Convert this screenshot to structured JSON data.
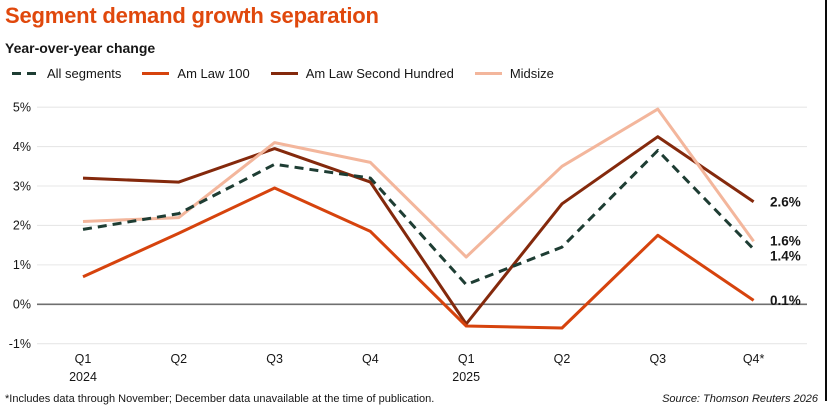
{
  "title": "Segment demand growth separation",
  "subtitle": "Year-over-year change",
  "legend": {
    "items": [
      {
        "label": "All segments",
        "color": "#1e3d33",
        "style": "dashed"
      },
      {
        "label": "Am Law 100",
        "color": "#d6430d",
        "style": "solid"
      },
      {
        "label": "Am Law Second Hundred",
        "color": "#84290c",
        "style": "solid"
      },
      {
        "label": "Midsize",
        "color": "#f3b69c",
        "style": "solid"
      }
    ]
  },
  "chart_data": {
    "type": "line",
    "x_categories": [
      "Q1",
      "Q2",
      "Q3",
      "Q4",
      "Q1",
      "Q2",
      "Q3",
      "Q4*"
    ],
    "x_year_labels": [
      {
        "index": 0,
        "label": "2024"
      },
      {
        "index": 4,
        "label": "2025"
      }
    ],
    "y_tick_labels": [
      "5%",
      "4%",
      "3%",
      "2%",
      "1%",
      "0%",
      "-1%"
    ],
    "ylim": [
      -1.5,
      5.4
    ],
    "grid": "horizontal",
    "legend_position": "top",
    "series": [
      {
        "name": "Am Law Second Hundred",
        "color": "#84290c",
        "dashed": false,
        "values": [
          3.2,
          3.1,
          3.95,
          3.1,
          -0.5,
          2.55,
          4.25,
          2.6
        ],
        "end_label": "2.6%"
      },
      {
        "name": "Midsize",
        "color": "#f3b69c",
        "dashed": false,
        "values": [
          2.1,
          2.2,
          4.1,
          3.6,
          1.2,
          3.5,
          4.95,
          1.6
        ],
        "end_label": "1.6%"
      },
      {
        "name": "Am Law 100",
        "color": "#d6430d",
        "dashed": false,
        "values": [
          0.7,
          1.8,
          2.95,
          1.85,
          -0.55,
          -0.6,
          1.75,
          0.1
        ],
        "end_label": "0.1%"
      },
      {
        "name": "All segments",
        "color": "#1e3d33",
        "dashed": true,
        "values": [
          1.9,
          2.3,
          3.55,
          3.2,
          0.5,
          1.45,
          3.9,
          1.4
        ],
        "end_label": "1.4%"
      }
    ]
  },
  "footer": {
    "footnote": "*Includes data through November; December data unavailable at the time of publication.",
    "source": "Source: Thomson Reuters 2026"
  },
  "colors": {
    "title": "#e0480c",
    "text": "#161616",
    "grid": "#e7e7e7",
    "zero_line": "#6f6f6f",
    "background": "#ffffff"
  }
}
